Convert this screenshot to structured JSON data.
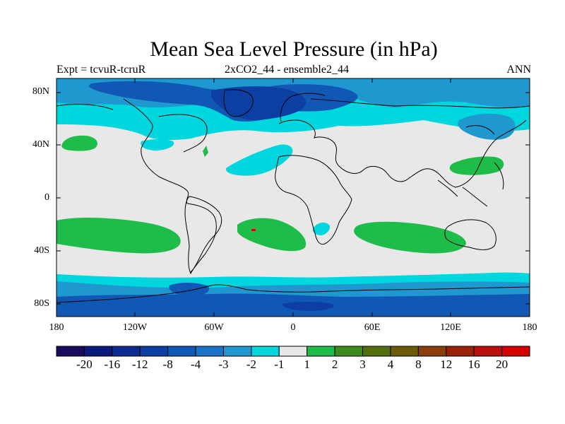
{
  "title": "Mean Sea Level Pressure (in hPa)",
  "subtitle_left": "Expt = tcvuR-tcruR",
  "subtitle_center": "2xCO2_44 - ensemble2_44",
  "subtitle_right": "ANN",
  "lat_labels": [
    "80N",
    "40N",
    "0",
    "40S",
    "80S"
  ],
  "lon_labels": [
    "180",
    "120W",
    "60W",
    "0",
    "60E",
    "120E",
    "180"
  ],
  "colorbar": {
    "colors": [
      "#1b0b5e",
      "#0a1a7a",
      "#0c2a8f",
      "#0d3fa3",
      "#1158b5",
      "#1a73c6",
      "#1f98d0",
      "#00d6dd",
      "#e8e8e8",
      "#1ebd49",
      "#3f8a1e",
      "#526e0f",
      "#6b5b0a",
      "#8a3e0a",
      "#9a220c",
      "#b81110",
      "#d40000"
    ],
    "labels": [
      "-20",
      "-16",
      "-12",
      "-8",
      "-4",
      "-3",
      "-2",
      "-1",
      "1",
      "2",
      "3",
      "4",
      "8",
      "12",
      "16",
      "20"
    ]
  },
  "colors": {
    "neutral": "#e8e8e8",
    "cyan": "#00d6dd",
    "light_blue": "#1f98d0",
    "blue": "#1158b5",
    "dark_blue": "#0d3fa3",
    "green": "#1ebd49",
    "red": "#b81110"
  }
}
